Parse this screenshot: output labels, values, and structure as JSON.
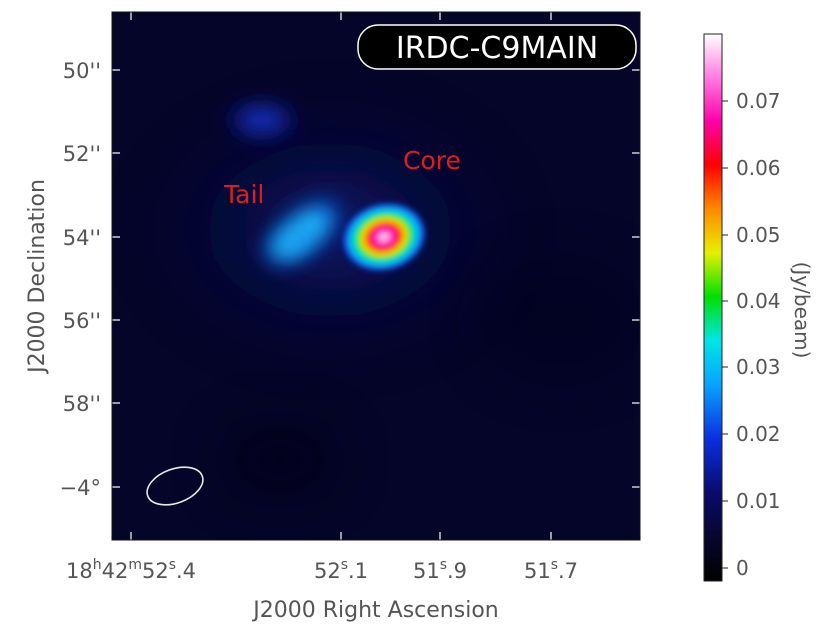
{
  "chart_data": {
    "type": "heatmap",
    "title": "IRDC-C9MAIN",
    "xlabel": "J2000 Right Ascension",
    "ylabel": "J2000 Declination",
    "colorbar_label": "(Jy/beam)",
    "colormap": "rainbow (black-blue-cyan-green-yellow-red-magenta-white)",
    "colorbar_range": [
      0,
      0.08
    ],
    "colorbar_ticks": [
      "0",
      "0.01",
      "0.02",
      "0.03",
      "0.04",
      "0.05",
      "0.06",
      "0.07"
    ],
    "x_ticks": [
      {
        "main": "18",
        "sup1": "h",
        "mid1": "42",
        "sup2": "m",
        "mid2": "52",
        "sup3": "s",
        "end": ".4"
      },
      {
        "main": "52",
        "sup3": "s",
        "end": ".1"
      },
      {
        "main": "51",
        "sup3": "s",
        "end": ".9"
      },
      {
        "main": "51",
        "sup3": "s",
        "end": ".7"
      }
    ],
    "y_ticks": [
      "50''",
      "52''",
      "54''",
      "56''",
      "58''",
      "−4°"
    ],
    "sources": [
      {
        "label": "Core",
        "peak_jy_per_beam": 0.078
      },
      {
        "label": "Tail",
        "peak_jy_per_beam": 0.03
      }
    ],
    "beam_shown": true,
    "grid": false
  }
}
